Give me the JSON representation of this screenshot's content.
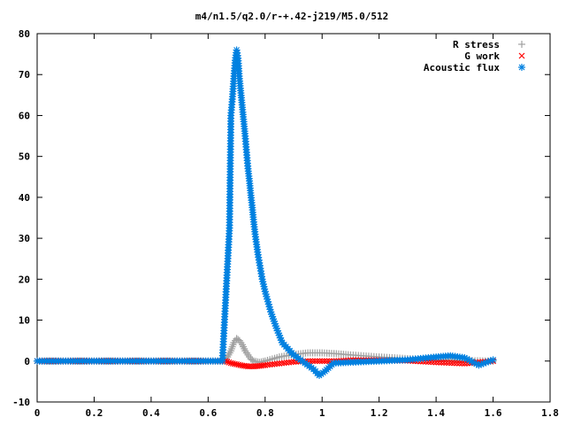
{
  "chart_data": {
    "type": "scatter",
    "title": "m4/n1.5/q2.0/r-+.42-j219/M5.0/512",
    "xlabel": "",
    "ylabel": "",
    "xlim": [
      0,
      1.8
    ],
    "ylim": [
      -10,
      80
    ],
    "x_ticks": [
      0,
      0.2,
      0.4,
      0.6,
      0.8,
      1,
      1.2,
      1.4,
      1.6,
      1.8
    ],
    "x_tick_labels": [
      "0",
      "0.2",
      "0.4",
      "0.6",
      "0.8",
      "1",
      "1.2",
      "1.4",
      "1.6",
      "1.8"
    ],
    "y_ticks": [
      -10,
      0,
      10,
      20,
      30,
      40,
      50,
      60,
      70,
      80
    ],
    "y_tick_labels": [
      "-10",
      "0",
      "10",
      "20",
      "30",
      "40",
      "50",
      "60",
      "70",
      "80"
    ],
    "grid": false,
    "legend_position": "top-right",
    "series": [
      {
        "name": "R stress",
        "marker": "plus",
        "color": "#a0a0a0",
        "x": [
          0.0,
          0.1,
          0.2,
          0.3,
          0.4,
          0.5,
          0.6,
          0.66,
          0.68,
          0.69,
          0.7,
          0.71,
          0.72,
          0.73,
          0.74,
          0.75,
          0.76,
          0.78,
          0.8,
          0.85,
          0.9,
          0.95,
          1.0,
          1.05,
          1.1,
          1.2,
          1.3,
          1.4,
          1.5,
          1.6
        ],
        "y": [
          0,
          0,
          0,
          0,
          0,
          0,
          0,
          0,
          2.5,
          4.5,
          5.5,
          5,
          4,
          2.5,
          1.5,
          0.5,
          0,
          -0.3,
          0,
          1,
          1.6,
          2,
          2,
          1.8,
          1.5,
          1,
          0.6,
          0.3,
          0.1,
          0
        ]
      },
      {
        "name": "G work",
        "marker": "cross",
        "color": "#ff0000",
        "x": [
          0.0,
          0.1,
          0.2,
          0.3,
          0.4,
          0.5,
          0.6,
          0.66,
          0.68,
          0.7,
          0.72,
          0.74,
          0.76,
          0.78,
          0.8,
          0.85,
          0.9,
          0.95,
          1.0,
          1.05,
          1.1,
          1.2,
          1.3,
          1.4,
          1.5,
          1.6
        ],
        "y": [
          0,
          0,
          0,
          0,
          0,
          0,
          0,
          0,
          -0.5,
          -0.8,
          -1.1,
          -1.3,
          -1.3,
          -1.2,
          -1,
          -0.6,
          -0.2,
          0,
          0,
          0,
          0.2,
          0.2,
          0.1,
          -0.3,
          -0.6,
          0
        ]
      },
      {
        "name": "Acoustic flux",
        "marker": "star",
        "color": "#0080e0",
        "x": [
          0.0,
          0.05,
          0.1,
          0.15,
          0.2,
          0.25,
          0.3,
          0.35,
          0.4,
          0.45,
          0.5,
          0.55,
          0.6,
          0.65,
          0.675,
          0.68,
          0.685,
          0.69,
          0.695,
          0.7,
          0.705,
          0.71,
          0.715,
          0.72,
          0.725,
          0.73,
          0.735,
          0.74,
          0.745,
          0.75,
          0.755,
          0.76,
          0.765,
          0.77,
          0.775,
          0.78,
          0.785,
          0.79,
          0.8,
          0.81,
          0.82,
          0.84,
          0.86,
          0.9,
          0.94,
          0.97,
          0.99,
          1.01,
          1.04,
          1.1,
          1.2,
          1.3,
          1.4,
          1.45,
          1.5,
          1.55,
          1.6
        ],
        "y": [
          0,
          0,
          0,
          0,
          0,
          0,
          0,
          0,
          0,
          0,
          0,
          0,
          0,
          0,
          32.5,
          60,
          64,
          69,
          73.5,
          76,
          74,
          69,
          65.5,
          62,
          58.5,
          55,
          51,
          47,
          44,
          40.5,
          37.5,
          34,
          31,
          28.5,
          26,
          24,
          22,
          20,
          17,
          14.5,
          12,
          8,
          4.5,
          1.5,
          -0.5,
          -2,
          -3.5,
          -2.5,
          -0.5,
          -0.3,
          0,
          0.3,
          1,
          1.3,
          0.8,
          -1,
          0.3
        ]
      }
    ]
  }
}
